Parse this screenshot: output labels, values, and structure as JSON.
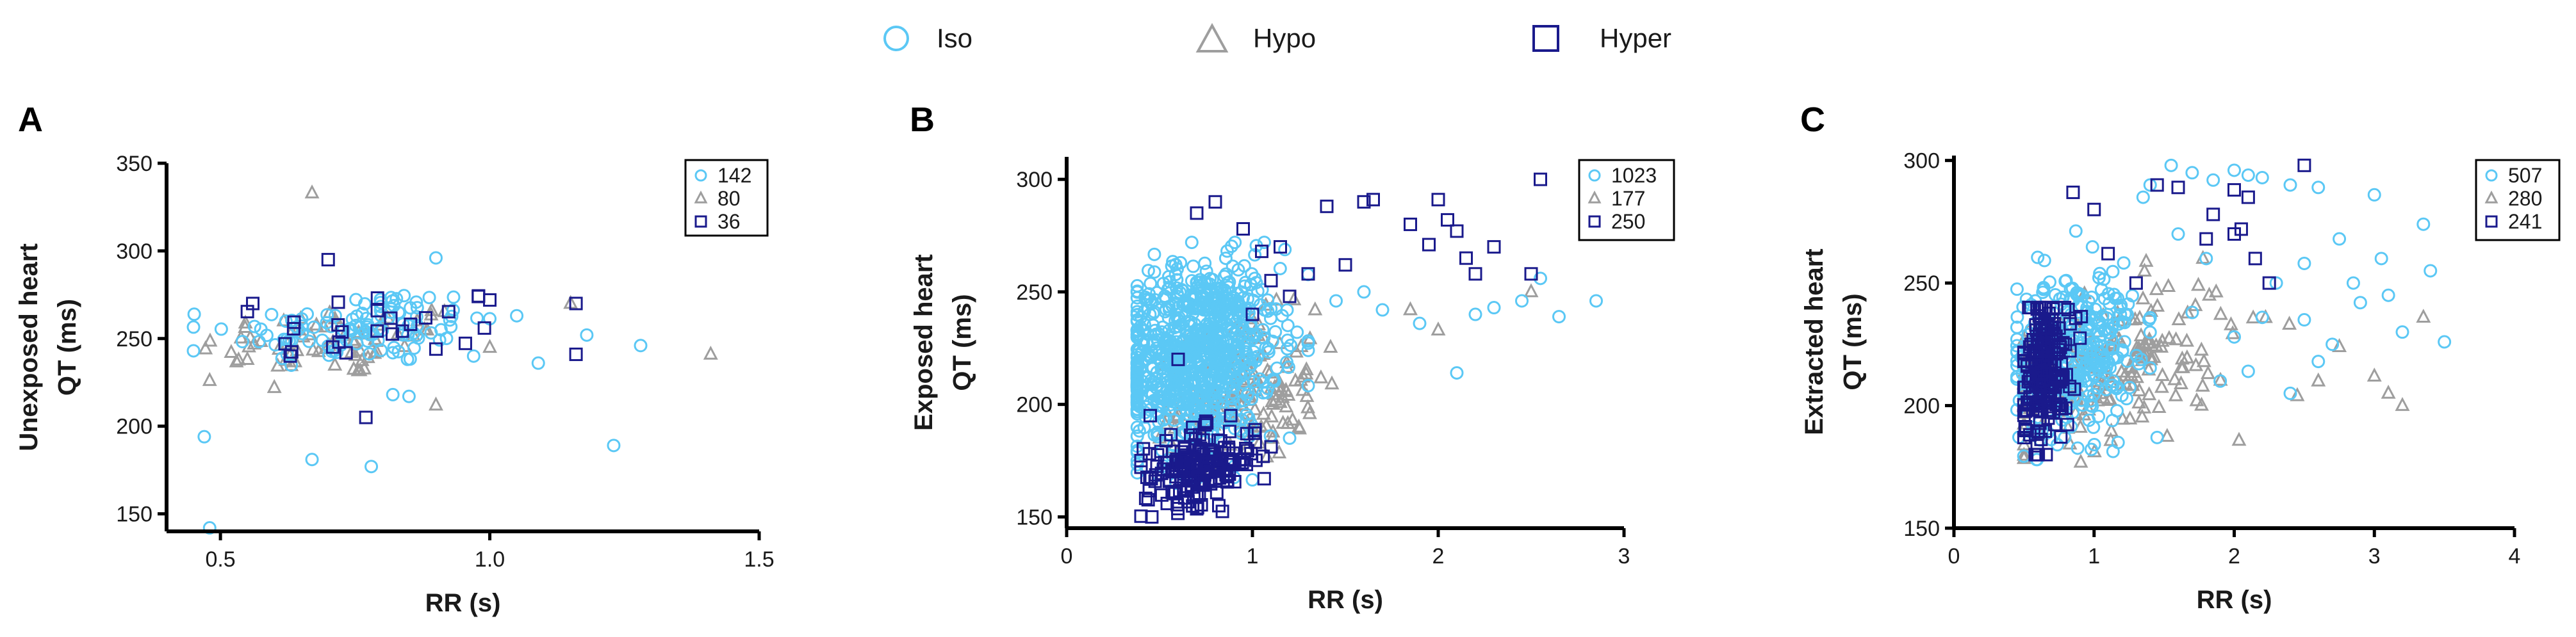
{
  "legend": {
    "items": [
      {
        "name": "Iso",
        "marker": "circle",
        "color": "#5bc8f5"
      },
      {
        "name": "Hypo",
        "marker": "triangle",
        "color": "#9e9e9e"
      },
      {
        "name": "Hyper",
        "marker": "square",
        "color": "#1a1a8c"
      }
    ]
  },
  "chart_data": [
    {
      "type": "scatter",
      "panel_label": "A",
      "ylabel_line1": "Unexposed heart",
      "ylabel_line2": "QT (ms)",
      "xlabel": "RR (s)",
      "xlim": [
        0.4,
        1.5
      ],
      "ylim": [
        140,
        350
      ],
      "xticks": [
        0.5,
        1.0,
        1.5
      ],
      "xtick_labels": [
        "0.5",
        "1.0",
        "1.5"
      ],
      "yticks": [
        150,
        200,
        250,
        300,
        350
      ],
      "ytick_labels": [
        "150",
        "200",
        "250",
        "300",
        "350"
      ],
      "legend_counts": {
        "Iso": "142",
        "Hypo": "80",
        "Hyper": "36"
      },
      "series": [
        {
          "name": "Iso",
          "cluster": {
            "n": 110,
            "x_mean": 0.76,
            "x_sd": 0.12,
            "x_range": [
              0.45,
              1.0
            ],
            "y_mean": 256,
            "y_sd": 11,
            "y_range": [
              225,
              300
            ]
          },
          "outliers": [
            [
              0.45,
              243
            ],
            [
              0.47,
              194
            ],
            [
              0.48,
              142
            ],
            [
              0.67,
              181
            ],
            [
              0.78,
              177
            ],
            [
              0.82,
              218
            ],
            [
              0.85,
              217
            ],
            [
              0.9,
              296
            ],
            [
              0.97,
              240
            ],
            [
              1.05,
              263
            ],
            [
              1.09,
              236
            ],
            [
              1.18,
              252
            ],
            [
              1.28,
              246
            ],
            [
              1.23,
              189
            ]
          ]
        },
        {
          "name": "Hypo",
          "cluster": {
            "n": 68,
            "x_mean": 0.72,
            "x_sd": 0.13,
            "x_range": [
              0.47,
              1.0
            ],
            "y_mean": 248,
            "y_sd": 10,
            "y_range": [
              220,
              275
            ]
          },
          "outliers": [
            [
              0.67,
              333
            ],
            [
              0.48,
              226
            ],
            [
              0.52,
              242
            ],
            [
              0.55,
              238
            ],
            [
              0.6,
              222
            ],
            [
              0.9,
              212
            ],
            [
              1.41,
              241
            ],
            [
              1.15,
              270
            ]
          ]
        },
        {
          "name": "Hyper",
          "cluster": {
            "n": 22,
            "x_mean": 0.8,
            "x_sd": 0.11,
            "x_range": [
              0.55,
              1.0
            ],
            "y_mean": 259,
            "y_sd": 10,
            "y_range": [
              240,
              280
            ]
          },
          "outliers": [
            [
              0.7,
              295
            ],
            [
              0.77,
              205
            ],
            [
              0.72,
              248
            ],
            [
              0.56,
              270
            ],
            [
              0.62,
              247
            ],
            [
              0.9,
              244
            ],
            [
              1.16,
              241
            ],
            [
              1.16,
              270
            ],
            [
              1.0,
              272
            ],
            [
              0.99,
              256
            ]
          ]
        }
      ]
    },
    {
      "type": "scatter",
      "panel_label": "B",
      "ylabel_line1": "Exposed heart",
      "ylabel_line2": "QT (ms)",
      "xlabel": "RR (s)",
      "xlim": [
        0,
        3
      ],
      "ylim": [
        145,
        310
      ],
      "xticks": [
        0,
        1,
        2,
        3
      ],
      "xtick_labels": [
        "0",
        "1",
        "2",
        "3"
      ],
      "yticks": [
        150,
        200,
        250,
        300
      ],
      "ytick_labels": [
        "150",
        "200",
        "250",
        "300"
      ],
      "legend_counts": {
        "Iso": "1023",
        "Hypo": "177",
        "Hyper": "250"
      },
      "series": [
        {
          "name": "Iso",
          "cluster": {
            "n": 850,
            "x_mean": 0.7,
            "x_sd": 0.22,
            "x_range": [
              0.38,
              1.3
            ],
            "y_mean": 222,
            "y_sd": 20,
            "y_range": [
              165,
              272
            ]
          },
          "outliers": [
            [
              1.45,
              246
            ],
            [
              1.6,
              250
            ],
            [
              1.7,
              242
            ],
            [
              1.9,
              236
            ],
            [
              2.1,
              214
            ],
            [
              2.2,
              240
            ],
            [
              2.3,
              243
            ],
            [
              2.45,
              246
            ],
            [
              2.55,
              256
            ],
            [
              2.65,
              239
            ],
            [
              2.85,
              246
            ],
            [
              1.3,
              224
            ],
            [
              1.2,
              185
            ]
          ]
        },
        {
          "name": "Hypo",
          "cluster": {
            "n": 160,
            "x_mean": 0.95,
            "x_sd": 0.2,
            "x_range": [
              0.5,
              1.5
            ],
            "y_mean": 205,
            "y_sd": 16,
            "y_range": [
              170,
              252
            ]
          },
          "outliers": [
            [
              1.85,
              242
            ],
            [
              2.0,
              233
            ],
            [
              2.5,
              250
            ]
          ]
        },
        {
          "name": "Hyper",
          "cluster": {
            "n": 180,
            "x_mean": 0.72,
            "x_sd": 0.15,
            "x_range": [
              0.4,
              1.1
            ],
            "y_mean": 172,
            "y_sd": 8,
            "y_range": [
              150,
              195
            ]
          },
          "outliers": [
            [
              0.45,
              195
            ],
            [
              0.6,
              220
            ],
            [
              0.7,
              285
            ],
            [
              0.8,
              290
            ],
            [
              0.95,
              278
            ],
            [
              1.05,
              268
            ],
            [
              1.1,
              255
            ],
            [
              1.15,
              270
            ],
            [
              1.3,
              258
            ],
            [
              1.4,
              288
            ],
            [
              1.5,
              262
            ],
            [
              1.6,
              290
            ],
            [
              1.65,
              291
            ],
            [
              1.85,
              280
            ],
            [
              1.95,
              271
            ],
            [
              2.0,
              291
            ],
            [
              2.05,
              282
            ],
            [
              2.1,
              277
            ],
            [
              2.15,
              265
            ],
            [
              2.2,
              258
            ],
            [
              2.3,
              270
            ],
            [
              2.55,
              300
            ],
            [
              2.5,
              258
            ],
            [
              1.2,
              248
            ],
            [
              1.0,
              240
            ]
          ]
        }
      ]
    },
    {
      "type": "scatter",
      "panel_label": "C",
      "ylabel_line1": "Extracted heart",
      "ylabel_line2": "QT (ms)",
      "xlabel": "RR (s)",
      "xlim": [
        0,
        4
      ],
      "ylim": [
        150,
        302
      ],
      "xticks": [
        0,
        1,
        2,
        3,
        4
      ],
      "xtick_labels": [
        "0",
        "1",
        "2",
        "3",
        "4"
      ],
      "yticks": [
        150,
        200,
        250,
        300
      ],
      "ytick_labels": [
        "150",
        "200",
        "250",
        "300"
      ],
      "legend_counts": {
        "Iso": "507",
        "Hypo": "280",
        "Hyper": "241"
      },
      "series": [
        {
          "name": "Iso",
          "cluster": {
            "n": 330,
            "x_mean": 0.85,
            "x_sd": 0.22,
            "x_range": [
              0.45,
              1.4
            ],
            "y_mean": 222,
            "y_sd": 17,
            "y_range": [
              178,
              300
            ]
          },
          "outliers": [
            [
              1.4,
              290
            ],
            [
              1.35,
              285
            ],
            [
              1.55,
              298
            ],
            [
              1.7,
              295
            ],
            [
              1.85,
              292
            ],
            [
              2.0,
              296
            ],
            [
              2.1,
              294
            ],
            [
              2.2,
              293
            ],
            [
              2.4,
              290
            ],
            [
              2.6,
              289
            ],
            [
              2.75,
              268
            ],
            [
              2.85,
              250
            ],
            [
              3.0,
              286
            ],
            [
              3.1,
              245
            ],
            [
              3.2,
              230
            ],
            [
              3.35,
              274
            ],
            [
              3.4,
              255
            ],
            [
              3.5,
              226
            ],
            [
              2.5,
              235
            ],
            [
              2.2,
              236
            ],
            [
              2.0,
              228
            ],
            [
              1.8,
              260
            ],
            [
              1.6,
              270
            ],
            [
              1.45,
              187
            ],
            [
              2.4,
              205
            ],
            [
              2.6,
              218
            ],
            [
              2.9,
              242
            ],
            [
              3.05,
              260
            ],
            [
              1.9,
              210
            ],
            [
              2.1,
              214
            ],
            [
              2.3,
              250
            ],
            [
              2.7,
              225
            ],
            [
              1.7,
              238
            ],
            [
              2.5,
              258
            ]
          ]
        },
        {
          "name": "Hypo",
          "cluster": {
            "n": 200,
            "x_mean": 1.1,
            "x_sd": 0.45,
            "x_range": [
              0.5,
              2.8
            ],
            "y_mean": 215,
            "y_sd": 15,
            "y_range": [
              176,
              260
            ]
          },
          "outliers": [
            [
              3.0,
              212
            ],
            [
              3.1,
              205
            ],
            [
              3.2,
              200
            ],
            [
              3.35,
              236
            ],
            [
              2.45,
              204
            ],
            [
              2.6,
              210
            ],
            [
              2.75,
              224
            ]
          ]
        },
        {
          "name": "Hyper",
          "cluster": {
            "n": 200,
            "x_mean": 0.65,
            "x_sd": 0.09,
            "x_range": [
              0.5,
              1.0
            ],
            "y_mean": 215,
            "y_sd": 15,
            "y_range": [
              180,
              240
            ]
          },
          "outliers": [
            [
              0.85,
              287
            ],
            [
              1.0,
              280
            ],
            [
              1.45,
              290
            ],
            [
              1.6,
              289
            ],
            [
              1.8,
              268
            ],
            [
              1.85,
              278
            ],
            [
              2.0,
              288
            ],
            [
              2.0,
              270
            ],
            [
              2.05,
              272
            ],
            [
              2.1,
              285
            ],
            [
              2.15,
              260
            ],
            [
              2.25,
              250
            ],
            [
              2.5,
              298
            ],
            [
              1.3,
              250
            ],
            [
              1.1,
              262
            ]
          ]
        }
      ]
    }
  ]
}
